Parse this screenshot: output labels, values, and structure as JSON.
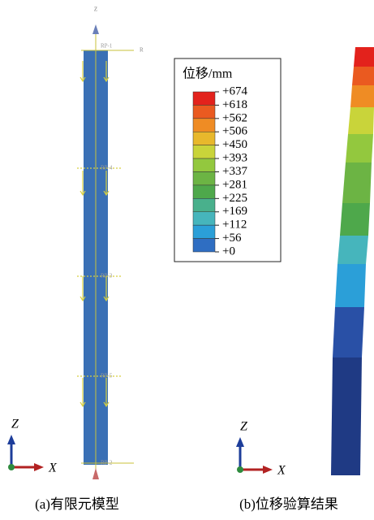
{
  "panel_a": {
    "caption": "(a)有限元模型",
    "axis_z": "Z",
    "axis_x": "X",
    "top_label": "Z",
    "ref_label": "R",
    "ref_points": [
      "RP-1",
      "RP-4",
      "RP-3",
      "RP-5",
      "RP-2"
    ]
  },
  "panel_b": {
    "caption": "(b)位移验算结果",
    "axis_z": "Z",
    "axis_x": "X"
  },
  "legend": {
    "title": "位移/mm",
    "labels": [
      "+674",
      "+618",
      "+562",
      "+506",
      "+450",
      "+393",
      "+337",
      "+281",
      "+225",
      "+169",
      "+112",
      "+56",
      "+0"
    ],
    "colors": [
      "#e3221c",
      "#ea5a20",
      "#ef8c24",
      "#e8b82c",
      "#c9d43a",
      "#93c83e",
      "#6cb444",
      "#4ea84b",
      "#49b08c",
      "#46b5bc",
      "#2b9fd8",
      "#2f6ec2",
      "#26409a"
    ]
  }
}
